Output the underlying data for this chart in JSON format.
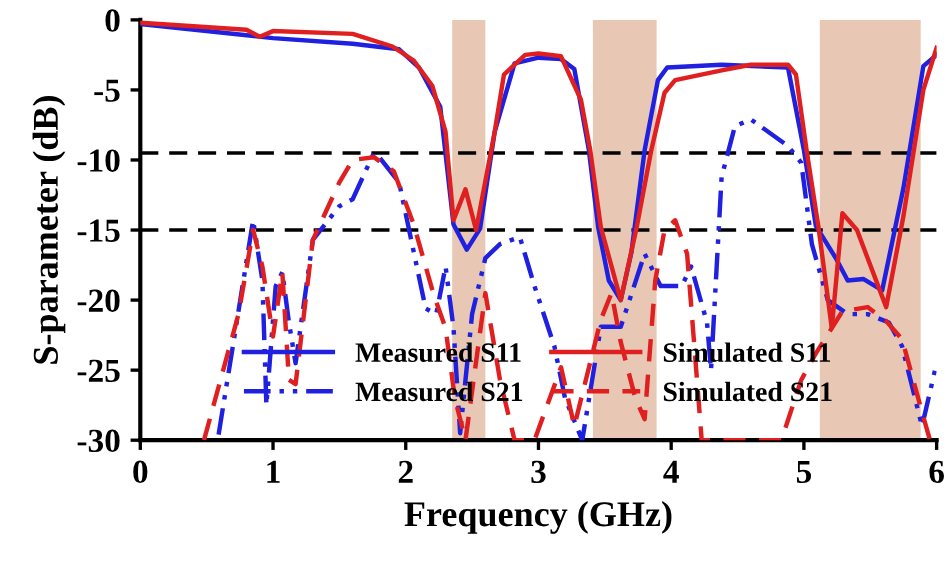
{
  "chart_data": {
    "type": "line",
    "xlabel": "Frequency (GHz)",
    "ylabel": "S-parameter (dB)",
    "xlim": [
      0,
      6
    ],
    "xticks": [
      0,
      1,
      2,
      3,
      4,
      5,
      6
    ],
    "ylim": [
      -30,
      0
    ],
    "yticks": [
      0,
      -5,
      -10,
      -15,
      -20,
      -25,
      -30
    ],
    "grid": false,
    "legend": "bottom",
    "marker": "none",
    "ref_lines": [
      {
        "axis": "y",
        "value": -9.5,
        "color": "#000000",
        "line_style": "dashed"
      },
      {
        "axis": "y",
        "value": -15,
        "color": "#000000",
        "line_style": "dashed"
      }
    ],
    "bands": [
      {
        "axis": "x",
        "from": 2.35,
        "to": 2.6,
        "color": "#e8c8b4"
      },
      {
        "axis": "x",
        "from": 3.41,
        "to": 3.89,
        "color": "#e8c8b4"
      },
      {
        "axis": "x",
        "from": 5.12,
        "to": 5.88,
        "color": "#e8c8b4"
      }
    ],
    "series": [
      {
        "name": "Measured S11",
        "color": "#2020e0",
        "line_style": "solid",
        "x": [
          0,
          1.0,
          1.6,
          1.95,
          2.1,
          2.26,
          2.36,
          2.46,
          2.56,
          2.67,
          2.82,
          3.0,
          3.17,
          3.27,
          3.38,
          3.45,
          3.53,
          3.62,
          3.7,
          3.8,
          3.9,
          3.97,
          4.38,
          4.88,
          5.0,
          5.09,
          5.24,
          5.33,
          5.45,
          5.59,
          5.75,
          5.9,
          6.0
        ],
        "values": [
          -0.3,
          -1.3,
          -1.7,
          -2.1,
          -3.4,
          -6.2,
          -14.6,
          -16.4,
          -14.9,
          -8,
          -3.1,
          -2.7,
          -2.8,
          -3.5,
          -9.3,
          -14.8,
          -18.6,
          -20,
          -16.6,
          -9.3,
          -4.3,
          -3.4,
          -3.2,
          -3.4,
          -9.3,
          -14.7,
          -17,
          -18.6,
          -18.5,
          -19.3,
          -12,
          -3.3,
          -2.5
        ]
      },
      {
        "name": "Measured S21",
        "color": "#2020e0",
        "line_style": "dashdot",
        "x": [
          0.59,
          0.85,
          0.92,
          0.95,
          1.02,
          1.07,
          1.12,
          1.17,
          1.3,
          1.5,
          1.6,
          1.76,
          1.8,
          1.95,
          2.15,
          2.23,
          2.3,
          2.36,
          2.41,
          2.5,
          2.6,
          2.71,
          2.86,
          2.97,
          3.12,
          3.2,
          3.33,
          3.47,
          3.62,
          3.8,
          3.92,
          4.08,
          4.15,
          4.27,
          4.3,
          4.38,
          4.48,
          4.6,
          4.88,
          4.98,
          5.06,
          5.18,
          5.33,
          5.48,
          5.64,
          5.74,
          5.89,
          6.0
        ],
        "values": [
          -29.6,
          -14.3,
          -18.6,
          -27.5,
          -19,
          -18,
          -21.6,
          -24.5,
          -15.7,
          -13.3,
          -12.8,
          -9.5,
          -9.8,
          -11.6,
          -20.6,
          -21,
          -17.6,
          -22,
          -29.5,
          -21,
          -17,
          -16,
          -15.5,
          -19,
          -23.3,
          -27,
          -30,
          -21.9,
          -21.9,
          -16.7,
          -19,
          -19,
          -17.6,
          -21.6,
          -25,
          -11.2,
          -7.6,
          -7.1,
          -9,
          -10.2,
          -16,
          -20,
          -21,
          -21,
          -21.6,
          -23.3,
          -29,
          -24.5
        ]
      },
      {
        "name": "Simulated S11",
        "color": "#e02020",
        "line_style": "solid",
        "x": [
          0,
          0.8,
          0.9,
          1.0,
          1.6,
          1.9,
          2.06,
          2.2,
          2.3,
          2.36,
          2.45,
          2.53,
          2.67,
          2.74,
          2.9,
          3.0,
          3.17,
          3.32,
          3.39,
          3.47,
          3.62,
          3.74,
          3.85,
          3.95,
          4.03,
          4.38,
          4.6,
          4.88,
          4.94,
          5.02,
          5.11,
          5.21,
          5.29,
          5.4,
          5.62,
          5.75,
          5.9,
          6.0
        ],
        "values": [
          -0.2,
          -0.7,
          -1.2,
          -0.8,
          -1.0,
          -1.9,
          -2.9,
          -4.7,
          -8,
          -14.3,
          -12.1,
          -15,
          -8,
          -3.9,
          -2.5,
          -2.4,
          -2.6,
          -5.7,
          -9.3,
          -14.8,
          -20,
          -14.8,
          -9.3,
          -5.2,
          -4.3,
          -3.6,
          -3.2,
          -3.2,
          -3.9,
          -9.3,
          -14.8,
          -22,
          -13.8,
          -15,
          -20.5,
          -14,
          -5,
          -2
        ]
      },
      {
        "name": "Simulated S21",
        "color": "#e02020",
        "line_style": "dashed",
        "x": [
          0.48,
          0.74,
          0.85,
          0.92,
          1.0,
          1.07,
          1.12,
          1.17,
          1.3,
          1.5,
          1.6,
          1.76,
          1.91,
          2.06,
          2.21,
          2.3,
          2.37,
          2.45,
          2.6,
          2.71,
          2.82,
          2.97,
          3.17,
          3.27,
          3.47,
          3.55,
          3.62,
          3.73,
          3.8,
          3.88,
          3.95,
          4.03,
          4.12,
          4.23,
          4.83,
          4.98,
          5.09,
          5.29,
          5.48,
          5.62,
          5.74,
          5.89,
          5.95
        ],
        "values": [
          -30,
          -21,
          -15,
          -17.6,
          -22.6,
          -18,
          -25.7,
          -26,
          -15.7,
          -11.6,
          -10,
          -9.8,
          -10.8,
          -14.6,
          -19.6,
          -22,
          -27,
          -30,
          -19.5,
          -25.7,
          -30,
          -30,
          -24.8,
          -29,
          -21.4,
          -19.5,
          -23,
          -27,
          -28.5,
          -18.6,
          -15,
          -14.3,
          -16.7,
          -30,
          -30,
          -25.7,
          -23.8,
          -20.8,
          -20.5,
          -21.5,
          -22.8,
          -28,
          -30
        ]
      }
    ]
  }
}
